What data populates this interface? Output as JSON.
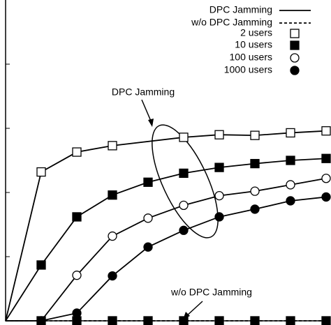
{
  "chart_data": {
    "type": "line",
    "xlim": [
      0,
      9
    ],
    "ylim": [
      0,
      5
    ],
    "yticks": [
      1,
      2,
      3,
      4
    ],
    "series": [
      {
        "name": "2 users",
        "marker": "square-open",
        "color": "#000",
        "x": [
          0,
          1,
          2,
          3,
          5,
          6,
          7,
          8,
          9
        ],
        "values": [
          0,
          2.32,
          2.63,
          2.73,
          2.86,
          2.9,
          2.89,
          2.93,
          2.96
        ]
      },
      {
        "name": "10 users",
        "marker": "square-filled",
        "color": "#000",
        "x": [
          0,
          1,
          2,
          3,
          4,
          5,
          6,
          7,
          8,
          9
        ],
        "values": [
          0,
          0.87,
          1.62,
          1.96,
          2.16,
          2.3,
          2.39,
          2.45,
          2.5,
          2.53
        ]
      },
      {
        "name": "100 users",
        "marker": "circle-open",
        "color": "#000",
        "x": [
          0,
          1,
          2,
          3,
          4,
          5,
          6,
          7,
          8,
          9
        ],
        "values": [
          0,
          0,
          0.71,
          1.32,
          1.6,
          1.8,
          1.95,
          2.02,
          2.12,
          2.22
        ]
      },
      {
        "name": "1000 users",
        "marker": "circle-filled",
        "color": "#000",
        "x": [
          0,
          1,
          2,
          3,
          4,
          5,
          6,
          7,
          8,
          9
        ],
        "values": [
          0,
          0,
          0.12,
          0.7,
          1.15,
          1.41,
          1.62,
          1.74,
          1.87,
          1.93
        ]
      }
    ],
    "baseline": {
      "name": "w/o DPC Jamming",
      "x": [
        0,
        1,
        2,
        3,
        4,
        5,
        6,
        7,
        8,
        9
      ],
      "values": [
        0,
        0,
        0,
        0,
        0,
        0,
        0,
        0,
        0,
        0
      ]
    },
    "line_legend": [
      "DPC Jamming",
      "w/o DPC Jamming"
    ],
    "annotations": [
      "DPC Jamming",
      "w/o DPC Jamming"
    ]
  }
}
